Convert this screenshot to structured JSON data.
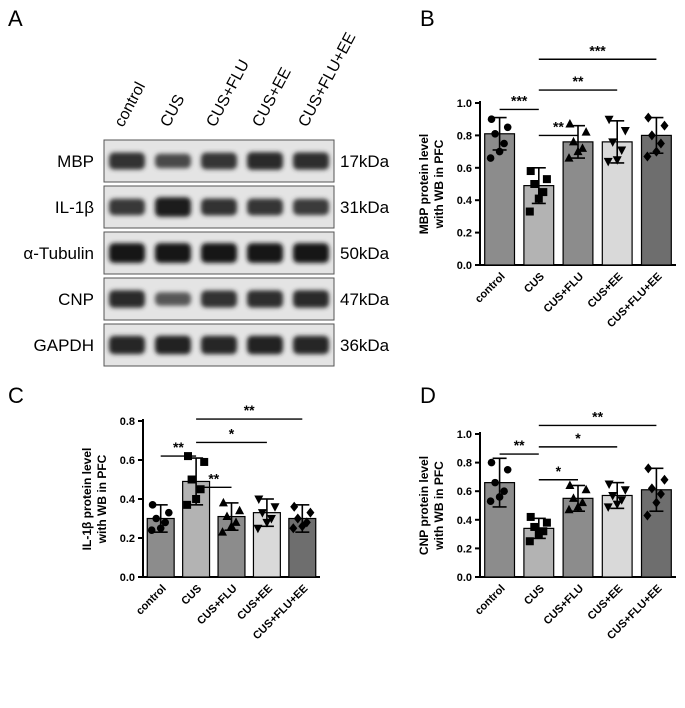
{
  "panels": {
    "A": "A",
    "B": "B",
    "C": "C",
    "D": "D"
  },
  "blot": {
    "lanes": [
      "control",
      "CUS",
      "CUS+FLU",
      "CUS+EE",
      "CUS+FLU+EE"
    ],
    "rows": [
      {
        "protein": "MBP",
        "size": "17kDa",
        "intensity": [
          0.75,
          0.55,
          0.72,
          0.82,
          0.78
        ]
      },
      {
        "protein": "IL-1β",
        "size": "31kDa",
        "intensity": [
          0.7,
          0.95,
          0.75,
          0.72,
          0.68
        ]
      },
      {
        "protein": "α-Tubulin",
        "size": "50kDa",
        "intensity": [
          0.98,
          0.98,
          0.98,
          0.98,
          0.98
        ]
      },
      {
        "protein": "CNP",
        "size": "47kDa",
        "intensity": [
          0.8,
          0.45,
          0.75,
          0.78,
          0.8
        ]
      },
      {
        "protein": "GAPDH",
        "size": "36kDa",
        "intensity": [
          0.85,
          0.88,
          0.86,
          0.88,
          0.85
        ]
      }
    ]
  },
  "chart_data": [
    {
      "type": "bar",
      "panel": "B",
      "ylabel": [
        "MBP protein level",
        "with WB in PFC"
      ],
      "categories": [
        "control",
        "CUS",
        "CUS+FLU",
        "CUS+EE",
        "CUS+FLU+EE"
      ],
      "values": [
        0.81,
        0.49,
        0.76,
        0.76,
        0.8
      ],
      "sd": [
        0.1,
        0.11,
        0.1,
        0.13,
        0.11
      ],
      "points": [
        [
          0.9,
          0.85,
          0.81,
          0.75,
          0.7,
          0.66
        ],
        [
          0.58,
          0.53,
          0.5,
          0.45,
          0.41,
          0.33
        ],
        [
          0.87,
          0.82,
          0.76,
          0.72,
          0.7,
          0.66
        ],
        [
          0.9,
          0.83,
          0.76,
          0.71,
          0.65,
          0.64
        ],
        [
          0.91,
          0.86,
          0.8,
          0.75,
          0.7,
          0.67
        ]
      ],
      "markers": [
        "circle",
        "square",
        "triangle",
        "triangle-down",
        "diamond"
      ],
      "bar_colors": [
        "#8c8c8c",
        "#b3b3b3",
        "#8c8c8c",
        "#d9d9d9",
        "#6e6e6e"
      ],
      "ylim": [
        0,
        1.0
      ],
      "yticks": [
        "0.0",
        "0.2",
        "0.4",
        "0.6",
        "0.8",
        "1.0"
      ],
      "significance": [
        {
          "from": 0,
          "to": 1,
          "label": "***",
          "y": 0.96
        },
        {
          "from": 1,
          "to": 2,
          "label": "**",
          "y": 0.8
        },
        {
          "from": 1,
          "to": 3,
          "label": "**",
          "y": 1.08
        },
        {
          "from": 1,
          "to": 4,
          "label": "***",
          "y": 1.27
        }
      ]
    },
    {
      "type": "bar",
      "panel": "C",
      "ylabel": [
        "IL-1β protein level",
        "with WB in PFC"
      ],
      "categories": [
        "control",
        "CUS",
        "CUS+FLU",
        "CUS+EE",
        "CUS+FLU+EE"
      ],
      "values": [
        0.3,
        0.49,
        0.31,
        0.33,
        0.3
      ],
      "sd": [
        0.07,
        0.12,
        0.07,
        0.07,
        0.07
      ],
      "points": [
        [
          0.37,
          0.33,
          0.3,
          0.28,
          0.25,
          0.24
        ],
        [
          0.62,
          0.59,
          0.5,
          0.45,
          0.4,
          0.37
        ],
        [
          0.38,
          0.34,
          0.31,
          0.28,
          0.26,
          0.23
        ],
        [
          0.4,
          0.36,
          0.33,
          0.3,
          0.28,
          0.25
        ],
        [
          0.36,
          0.33,
          0.3,
          0.28,
          0.26,
          0.25
        ]
      ],
      "markers": [
        "circle",
        "square",
        "triangle",
        "triangle-down",
        "diamond"
      ],
      "bar_colors": [
        "#8c8c8c",
        "#b3b3b3",
        "#8c8c8c",
        "#d9d9d9",
        "#6e6e6e"
      ],
      "ylim": [
        0,
        0.8
      ],
      "yticks": [
        "0.0",
        "0.2",
        "0.4",
        "0.6",
        "0.8"
      ],
      "significance": [
        {
          "from": 0,
          "to": 1,
          "label": "**",
          "y": 0.62
        },
        {
          "from": 1,
          "to": 2,
          "label": "**",
          "y": 0.46
        },
        {
          "from": 1,
          "to": 3,
          "label": "*",
          "y": 0.69
        },
        {
          "from": 1,
          "to": 4,
          "label": "**",
          "y": 0.81
        }
      ]
    },
    {
      "type": "bar",
      "panel": "D",
      "ylabel": [
        "CNP protein level",
        "with WB in PFC"
      ],
      "categories": [
        "control",
        "CUS",
        "CUS+FLU",
        "CUS+EE",
        "CUS+FLU+EE"
      ],
      "values": [
        0.66,
        0.34,
        0.55,
        0.57,
        0.61
      ],
      "sd": [
        0.17,
        0.07,
        0.09,
        0.09,
        0.15
      ],
      "points": [
        [
          0.8,
          0.75,
          0.66,
          0.6,
          0.56,
          0.53
        ],
        [
          0.42,
          0.38,
          0.35,
          0.32,
          0.3,
          0.25
        ],
        [
          0.64,
          0.61,
          0.55,
          0.52,
          0.49,
          0.47
        ],
        [
          0.65,
          0.61,
          0.57,
          0.54,
          0.51,
          0.49
        ],
        [
          0.76,
          0.68,
          0.62,
          0.58,
          0.52,
          0.43
        ]
      ],
      "markers": [
        "circle",
        "square",
        "triangle",
        "triangle-down",
        "diamond"
      ],
      "bar_colors": [
        "#8c8c8c",
        "#b3b3b3",
        "#8c8c8c",
        "#d9d9d9",
        "#6e6e6e"
      ],
      "ylim": [
        0,
        1.0
      ],
      "yticks": [
        "0.0",
        "0.2",
        "0.4",
        "0.6",
        "0.8",
        "1.0"
      ],
      "significance": [
        {
          "from": 0,
          "to": 1,
          "label": "**",
          "y": 0.86
        },
        {
          "from": 1,
          "to": 2,
          "label": "*",
          "y": 0.68
        },
        {
          "from": 1,
          "to": 3,
          "label": "*",
          "y": 0.91
        },
        {
          "from": 1,
          "to": 4,
          "label": "**",
          "y": 1.06
        }
      ]
    }
  ]
}
